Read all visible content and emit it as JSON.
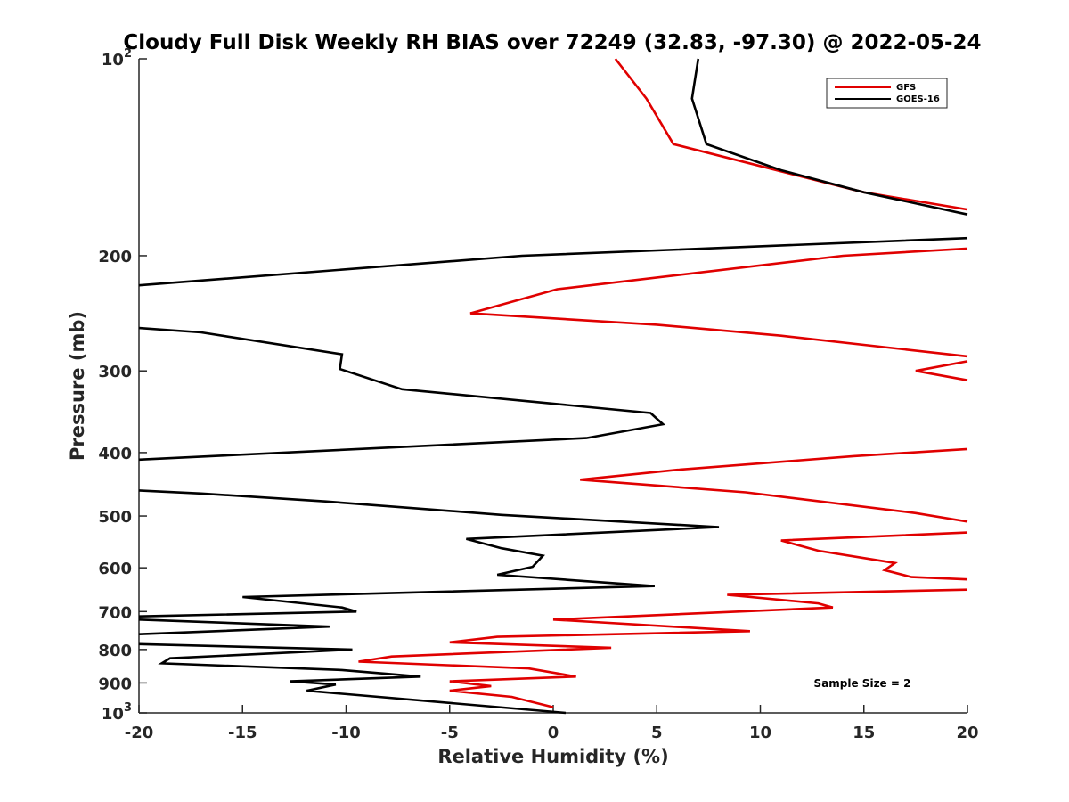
{
  "chart_data": {
    "type": "line",
    "title": "Cloudy Full Disk Weekly RH BIAS over 72249 (32.83, -97.30) @ 2022-05-24",
    "xlabel": "Relative Humidity (%)",
    "ylabel": "Pressure (mb)",
    "xlim": [
      -20,
      20
    ],
    "ylim": [
      100,
      1000
    ],
    "y_scale": "log",
    "y_reversed": true,
    "grid": false,
    "legend_position": "top-right",
    "x_ticks": [
      "-20",
      "-15",
      "-10",
      "-5",
      "0",
      "5",
      "10",
      "15",
      "20"
    ],
    "y_ticks": [
      {
        "value": 100,
        "base": "10",
        "exp": "2"
      },
      {
        "value": 200,
        "label": "200"
      },
      {
        "value": 300,
        "label": "300"
      },
      {
        "value": 400,
        "label": "400"
      },
      {
        "value": 500,
        "label": "500"
      },
      {
        "value": 600,
        "label": "600"
      },
      {
        "value": 700,
        "label": "700"
      },
      {
        "value": 800,
        "label": "800"
      },
      {
        "value": 900,
        "label": "900"
      },
      {
        "value": 1000,
        "base": "10",
        "exp": "3"
      }
    ],
    "series": [
      {
        "name": "GFS",
        "color": "#e00000",
        "points": [
          [
            3.0,
            100
          ],
          [
            4.5,
            115
          ],
          [
            5.8,
            135
          ],
          [
            15.0,
            160
          ],
          [
            20.0,
            170
          ],
          [
            null,
            null
          ],
          [
            20.0,
            195
          ],
          [
            14.0,
            200
          ],
          [
            0.2,
            225
          ],
          [
            -4.0,
            245
          ],
          [
            5.0,
            255
          ],
          [
            11.0,
            265
          ],
          [
            20.0,
            285
          ],
          [
            null,
            null
          ],
          [
            20.0,
            290
          ],
          [
            17.5,
            300
          ],
          [
            20.0,
            310
          ],
          [
            null,
            null
          ],
          [
            20.0,
            395
          ],
          [
            14.5,
            405
          ],
          [
            6.0,
            425
          ],
          [
            1.3,
            440
          ],
          [
            9.3,
            460
          ],
          [
            17.5,
            495
          ],
          [
            20.0,
            510
          ],
          [
            null,
            null
          ],
          [
            20.0,
            530
          ],
          [
            11.0,
            545
          ],
          [
            12.8,
            565
          ],
          [
            16.5,
            590
          ],
          [
            16.0,
            605
          ],
          [
            17.3,
            620
          ],
          [
            20.0,
            625
          ],
          [
            null,
            null
          ],
          [
            20.0,
            648
          ],
          [
            8.4,
            660
          ],
          [
            12.8,
            680
          ],
          [
            13.5,
            690
          ],
          [
            0.0,
            720
          ],
          [
            9.5,
            750
          ],
          [
            -2.7,
            765
          ],
          [
            -5.0,
            780
          ],
          [
            2.8,
            795
          ],
          [
            -7.8,
            820
          ],
          [
            -9.4,
            835
          ],
          [
            -1.2,
            855
          ],
          [
            1.1,
            880
          ],
          [
            -5.0,
            895
          ],
          [
            -3.0,
            910
          ],
          [
            -5.0,
            925
          ],
          [
            -2.0,
            945
          ],
          [
            0.0,
            980
          ]
        ]
      },
      {
        "name": "GOES-16",
        "color": "#000000",
        "points": [
          [
            7.0,
            100
          ],
          [
            6.7,
            115
          ],
          [
            7.4,
            135
          ],
          [
            11.0,
            148
          ],
          [
            15.0,
            160
          ],
          [
            20.0,
            173
          ],
          [
            null,
            null
          ],
          [
            20.0,
            188
          ],
          [
            -1.5,
            200
          ],
          [
            -20.0,
            222
          ],
          [
            null,
            null
          ],
          [
            -20.0,
            258
          ],
          [
            -17.0,
            262
          ],
          [
            -10.2,
            283
          ],
          [
            -10.3,
            298
          ],
          [
            -7.3,
            320
          ],
          [
            4.7,
            348
          ],
          [
            5.3,
            362
          ],
          [
            1.6,
            380
          ],
          [
            -20.0,
            410
          ],
          [
            null,
            null
          ],
          [
            -20.0,
            457
          ],
          [
            -17.0,
            462
          ],
          [
            -11.0,
            475
          ],
          [
            -2.5,
            498
          ],
          [
            8.0,
            520
          ],
          [
            -4.2,
            542
          ],
          [
            -2.5,
            560
          ],
          [
            -0.5,
            575
          ],
          [
            -1.0,
            598
          ],
          [
            -2.7,
            615
          ],
          [
            4.9,
            640
          ],
          [
            -15.0,
            665
          ],
          [
            -10.2,
            690
          ],
          [
            -9.5,
            700
          ],
          [
            -20.0,
            712
          ],
          [
            null,
            null
          ],
          [
            -20.0,
            720
          ],
          [
            -10.8,
            738
          ],
          [
            -20.0,
            758
          ],
          [
            null,
            null
          ],
          [
            -20.0,
            785
          ],
          [
            -9.7,
            800
          ],
          [
            -18.5,
            825
          ],
          [
            -18.9,
            840
          ],
          [
            -10.2,
            860
          ],
          [
            -6.4,
            880
          ],
          [
            -12.7,
            895
          ],
          [
            -10.5,
            905
          ],
          [
            -11.9,
            925
          ],
          [
            0.6,
            1000
          ]
        ]
      }
    ],
    "annotations": [
      "Sample Size = 2"
    ]
  }
}
